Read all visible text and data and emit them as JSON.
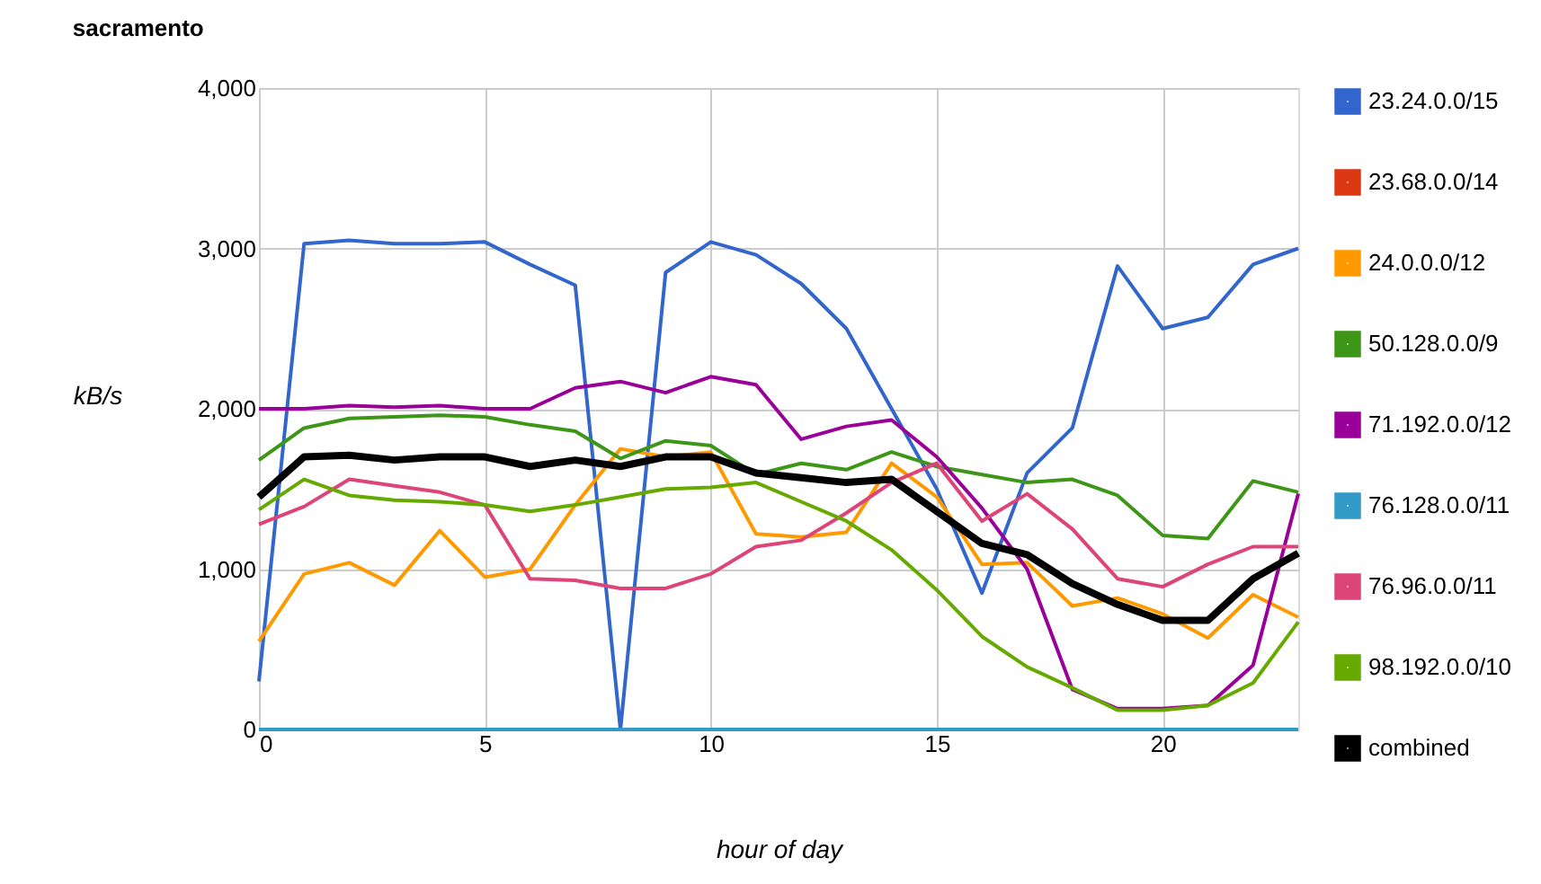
{
  "chart_data": {
    "type": "line",
    "title": "sacramento",
    "xlabel": "hour of day",
    "ylabel": "kB/s",
    "x": [
      0,
      1,
      2,
      3,
      4,
      5,
      6,
      7,
      8,
      9,
      10,
      11,
      12,
      13,
      14,
      15,
      16,
      17,
      18,
      19,
      20,
      21,
      22,
      23
    ],
    "xlim": [
      0,
      23
    ],
    "xticks": [
      0,
      5,
      10,
      15,
      20
    ],
    "ylim": [
      0,
      4000
    ],
    "yticks": [
      {
        "value": 0,
        "label": "0"
      },
      {
        "value": 1000,
        "label": "1,000"
      },
      {
        "value": 2000,
        "label": "2,000"
      },
      {
        "value": 3000,
        "label": "3,000"
      },
      {
        "value": 4000,
        "label": "4,000"
      }
    ],
    "grid": true,
    "legend": "right",
    "marker": "none",
    "line_style": "solid",
    "series": [
      {
        "name": "23.24.0.0/15",
        "color": "#3366cc",
        "values": [
          300,
          3030,
          3050,
          3030,
          3030,
          3040,
          2900,
          2770,
          0,
          2850,
          3040,
          2960,
          2780,
          2500,
          2000,
          1500,
          850,
          1600,
          1880,
          2890,
          2500,
          2570,
          2900,
          3000
        ]
      },
      {
        "name": "23.68.0.0/14",
        "color": "#dc3912",
        "values": [
          null,
          null,
          null,
          null,
          null,
          null,
          null,
          null,
          null,
          null,
          null,
          null,
          null,
          null,
          null,
          null,
          null,
          null,
          null,
          null,
          null,
          null,
          null,
          null
        ]
      },
      {
        "name": "24.0.0.0/12",
        "color": "#ff9900",
        "values": [
          550,
          970,
          1040,
          900,
          1240,
          950,
          1000,
          1400,
          1750,
          1700,
          1730,
          1220,
          1200,
          1230,
          1660,
          1450,
          1030,
          1040,
          770,
          820,
          720,
          570,
          840,
          700
        ]
      },
      {
        "name": "50.128.0.0/9",
        "color": "#3d9617",
        "values": [
          1680,
          1880,
          1940,
          1950,
          1960,
          1950,
          1900,
          1860,
          1690,
          1800,
          1770,
          1590,
          1660,
          1620,
          1730,
          1640,
          1590,
          1540,
          1560,
          1460,
          1210,
          1190,
          1550,
          1480
        ]
      },
      {
        "name": "71.192.0.0/12",
        "color": "#990099",
        "values": [
          2000,
          2000,
          2020,
          2010,
          2020,
          2000,
          2000,
          2130,
          2170,
          2100,
          2200,
          2150,
          1810,
          1890,
          1930,
          1700,
          1380,
          1000,
          250,
          130,
          130,
          150,
          400,
          1470
        ]
      },
      {
        "name": "76.128.0.0/11",
        "color": "#3399c6",
        "values": [
          0,
          0,
          0,
          0,
          0,
          0,
          0,
          0,
          0,
          0,
          0,
          0,
          0,
          0,
          0,
          0,
          0,
          0,
          0,
          0,
          0,
          0,
          0,
          0
        ]
      },
      {
        "name": "76.96.0.0/11",
        "color": "#dd4477",
        "values": [
          1280,
          1390,
          1560,
          1520,
          1480,
          1400,
          940,
          930,
          880,
          880,
          970,
          1140,
          1180,
          1350,
          1540,
          1660,
          1300,
          1470,
          1250,
          940,
          890,
          1030,
          1140,
          1140
        ]
      },
      {
        "name": "98.192.0.0/10",
        "color": "#66aa00",
        "values": [
          1370,
          1560,
          1460,
          1430,
          1420,
          1400,
          1360,
          1400,
          1450,
          1500,
          1510,
          1540,
          1420,
          1300,
          1120,
          870,
          580,
          390,
          260,
          120,
          120,
          150,
          290,
          670
        ]
      },
      {
        "name": "combined",
        "color": "#000000",
        "values": [
          1450,
          1700,
          1710,
          1680,
          1700,
          1700,
          1640,
          1680,
          1640,
          1700,
          1700,
          1600,
          1570,
          1540,
          1560,
          1360,
          1160,
          1090,
          910,
          780,
          680,
          680,
          940,
          1100
        ]
      }
    ]
  }
}
